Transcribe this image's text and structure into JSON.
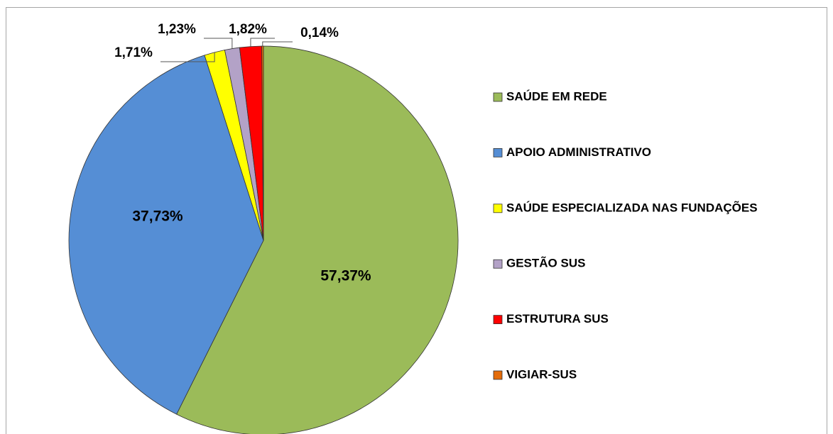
{
  "chart_data": {
    "type": "pie",
    "categories": [
      "SAÚDE EM REDE",
      "APOIO ADMINISTRATIVO",
      "SAÚDE ESPECIALIZADA NAS FUNDAÇÕES",
      "GESTÃO SUS",
      "ESTRUTURA SUS",
      "VIGIAR-SUS"
    ],
    "values": [
      57.37,
      37.73,
      1.71,
      1.23,
      1.82,
      0.14
    ],
    "value_labels": [
      "57,37%",
      "37,73%",
      "1,71%",
      "1,23%",
      "1,82%",
      "0,14%"
    ],
    "colors": [
      "#9bbb59",
      "#558ed5",
      "#ffff00",
      "#b3a2c7",
      "#ff0000",
      "#e46c0a"
    ],
    "legend": "right"
  }
}
